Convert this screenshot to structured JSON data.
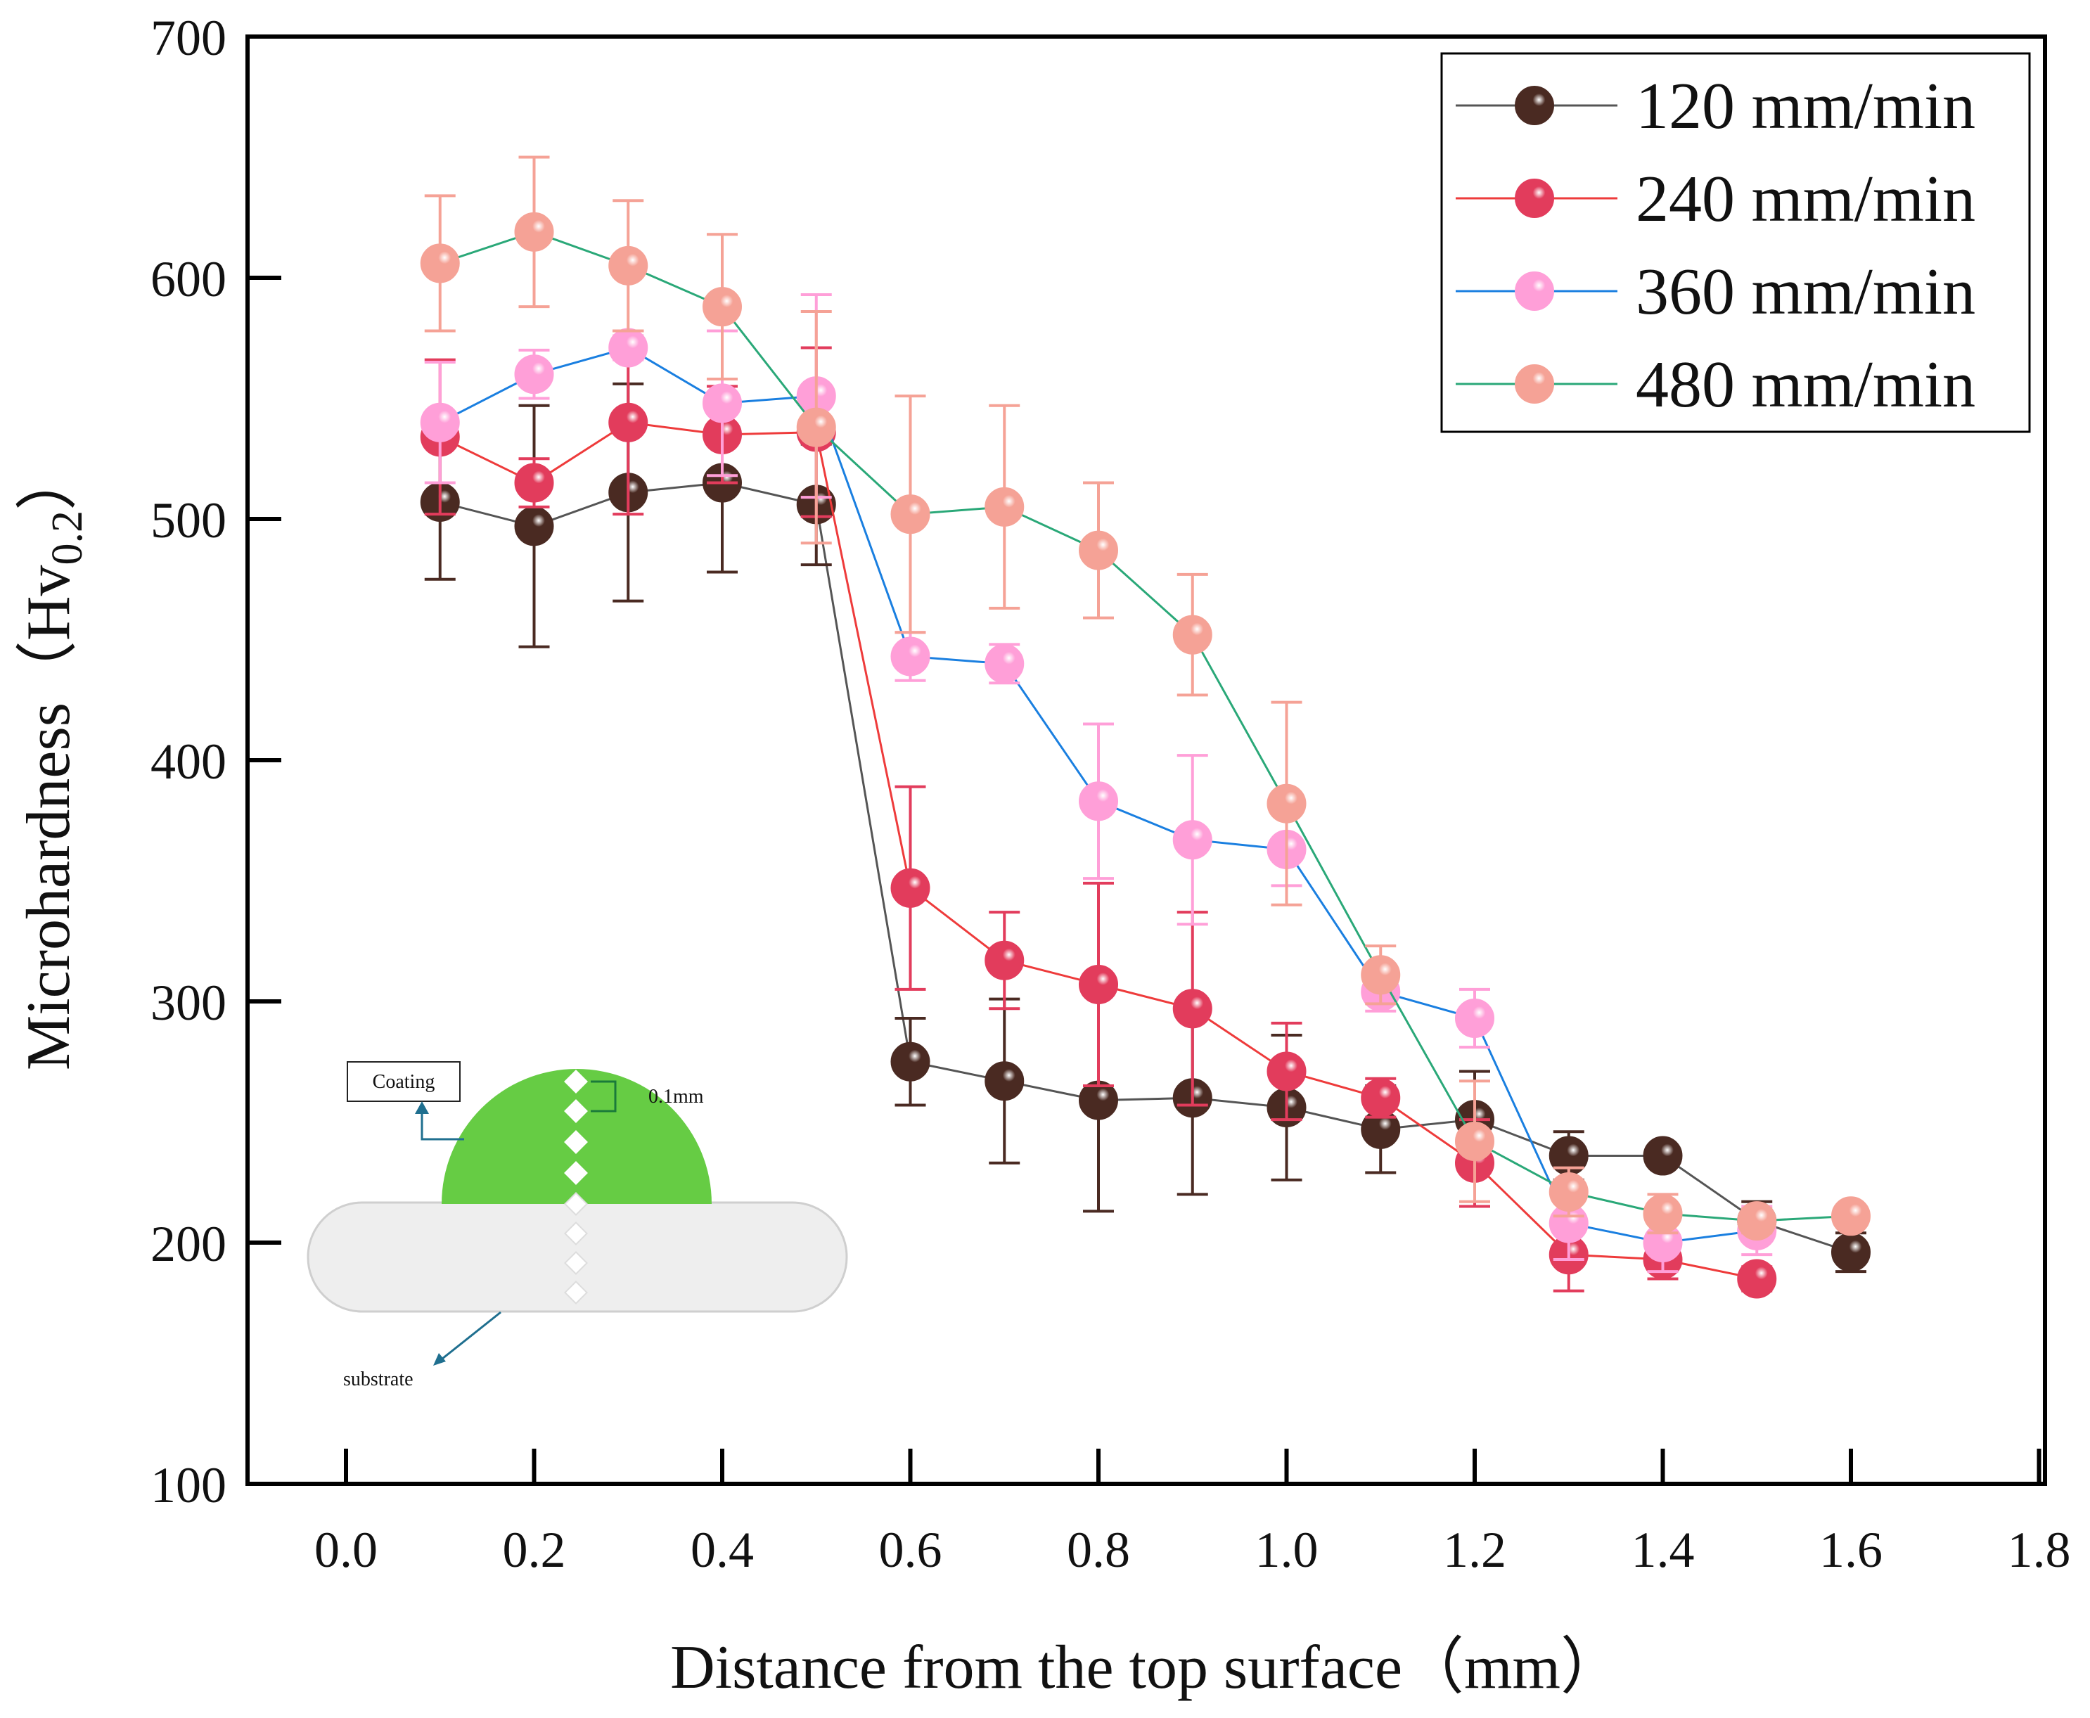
{
  "chart_data": {
    "type": "line",
    "title": "",
    "xlabel": "Distance from the top surface（mm）",
    "ylabel_main": "Microhardness（Hv",
    "ylabel_sub": "0.2",
    "ylabel_end": "）",
    "xlim": [
      -0.1,
      1.8
    ],
    "ylim": [
      100,
      700
    ],
    "xticks": [
      "0.0",
      "0.2",
      "0.4",
      "0.6",
      "0.8",
      "1.0",
      "1.2",
      "1.4",
      "1.6",
      "1.8"
    ],
    "yticks": [
      "100",
      "200",
      "300",
      "400",
      "500",
      "600",
      "700"
    ],
    "legend_position": "top-right",
    "series": [
      {
        "name": "120 mm/min",
        "line_color": "#555555",
        "marker_color": "#4a2a22",
        "x": [
          0.1,
          0.2,
          0.3,
          0.4,
          0.5,
          0.6,
          0.7,
          0.8,
          0.9,
          1.0,
          1.1,
          1.2,
          1.3,
          1.4,
          1.5,
          1.6
        ],
        "y": [
          507,
          497,
          511,
          515,
          506,
          275,
          267,
          259,
          260,
          256,
          247,
          251,
          236,
          236,
          209,
          196
        ],
        "err": [
          32,
          50,
          45,
          37,
          25,
          18,
          34,
          46,
          40,
          30,
          18,
          20,
          10,
          4,
          8,
          8
        ]
      },
      {
        "name": "240 mm/min",
        "line_color": "#ee3b3b",
        "marker_color": "#e23c5c",
        "x": [
          0.1,
          0.2,
          0.3,
          0.4,
          0.5,
          0.6,
          0.7,
          0.8,
          0.9,
          1.0,
          1.1,
          1.2,
          1.3,
          1.4,
          1.5
        ],
        "y": [
          534,
          515,
          540,
          535,
          536,
          347,
          317,
          307,
          297,
          271,
          260,
          233,
          195,
          193,
          185
        ],
        "err": [
          32,
          10,
          38,
          20,
          35,
          42,
          20,
          42,
          40,
          20,
          8,
          18,
          15,
          8,
          5
        ]
      },
      {
        "name": "360 mm/min",
        "line_color": "#1a7fe0",
        "marker_color": "#ff9fd8",
        "x": [
          0.1,
          0.2,
          0.3,
          0.4,
          0.5,
          0.6,
          0.7,
          0.8,
          0.9,
          1.0,
          1.1,
          1.2,
          1.3,
          1.4,
          1.5
        ],
        "y": [
          540,
          560,
          571,
          548,
          551,
          443,
          440,
          383,
          367,
          363,
          304,
          293,
          208,
          200,
          205
        ],
        "err": [
          25,
          10,
          5,
          30,
          42,
          10,
          8,
          32,
          35,
          15,
          8,
          12,
          15,
          12,
          10
        ]
      },
      {
        "name": "480 mm/min",
        "line_color": "#2aa878",
        "marker_color": "#f5a296",
        "x": [
          0.1,
          0.2,
          0.3,
          0.4,
          0.5,
          0.6,
          0.7,
          0.8,
          0.9,
          1.0,
          1.1,
          1.2,
          1.3,
          1.4,
          1.5,
          1.6
        ],
        "y": [
          606,
          619,
          605,
          588,
          538,
          502,
          505,
          487,
          452,
          382,
          311,
          242,
          221,
          212,
          209,
          211
        ],
        "err": [
          28,
          31,
          27,
          30,
          48,
          49,
          42,
          28,
          25,
          42,
          12,
          25,
          10,
          8,
          5,
          3
        ]
      }
    ],
    "inset": {
      "coating_label": "Coating",
      "spacing_label": "0.1mm",
      "substrate_label": "substrate",
      "colors": {
        "coating": "#66cc44",
        "substrate": "#eeeeee",
        "arrow": "#1f6f8f"
      }
    }
  }
}
